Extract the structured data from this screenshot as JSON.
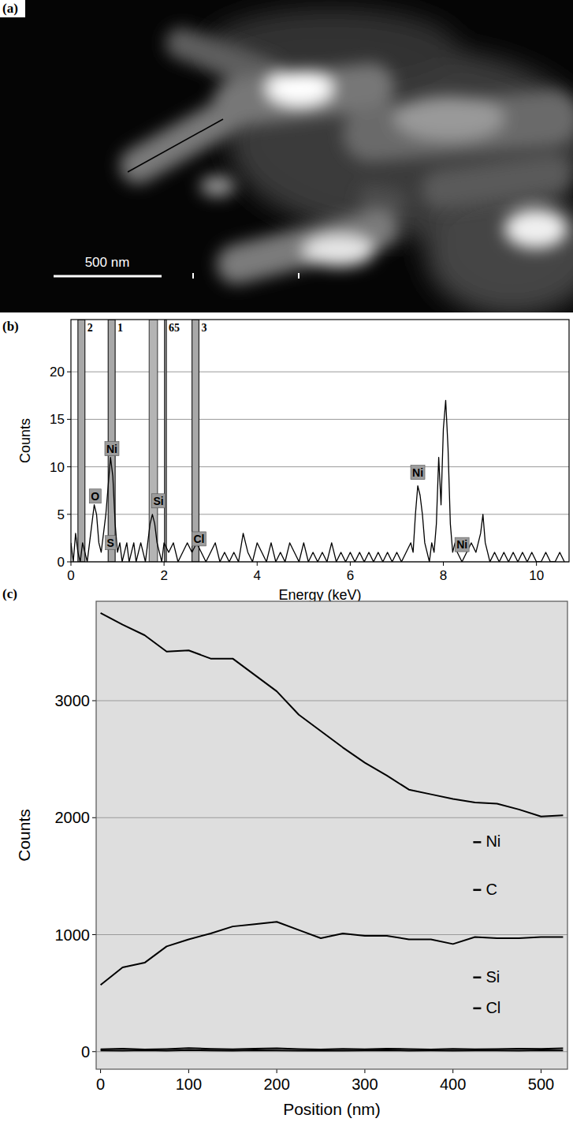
{
  "image": {
    "label": "(a)",
    "scale_bar": "500 nm"
  },
  "chart_data": [
    {
      "type": "line",
      "label": "(b)",
      "x_label": "Energy (keV)",
      "y_label": "Counts",
      "x": [
        0,
        0.05,
        0.1,
        0.15,
        0.2,
        0.25,
        0.3,
        0.35,
        0.4,
        0.45,
        0.5,
        0.55,
        0.6,
        0.65,
        0.7,
        0.75,
        0.8,
        0.85,
        0.9,
        0.95,
        1.0,
        1.05,
        1.1,
        1.15,
        1.2,
        1.25,
        1.3,
        1.35,
        1.4,
        1.45,
        1.5,
        1.55,
        1.6,
        1.65,
        1.7,
        1.75,
        1.8,
        1.85,
        1.9,
        1.95,
        2.0,
        2.1,
        2.2,
        2.3,
        2.4,
        2.5,
        2.6,
        2.7,
        2.8,
        2.9,
        3.0,
        3.1,
        3.2,
        3.3,
        3.4,
        3.5,
        3.6,
        3.7,
        3.8,
        3.9,
        4.0,
        4.1,
        4.2,
        4.3,
        4.4,
        4.5,
        4.6,
        4.7,
        4.8,
        4.9,
        5.0,
        5.1,
        5.2,
        5.3,
        5.4,
        5.5,
        5.6,
        5.7,
        5.8,
        5.9,
        6.0,
        6.1,
        6.2,
        6.3,
        6.4,
        6.5,
        6.6,
        6.7,
        6.8,
        6.9,
        7.0,
        7.1,
        7.2,
        7.3,
        7.35,
        7.4,
        7.45,
        7.5,
        7.55,
        7.6,
        7.65,
        7.7,
        7.75,
        7.8,
        7.85,
        7.9,
        7.95,
        8.0,
        8.05,
        8.1,
        8.15,
        8.2,
        8.25,
        8.3,
        8.4,
        8.5,
        8.6,
        8.7,
        8.8,
        8.85,
        8.9,
        8.95,
        9.0,
        9.1,
        9.2,
        9.3,
        9.4,
        9.5,
        9.6,
        9.7,
        9.8,
        9.9,
        10.0,
        10.1,
        10.2,
        10.3,
        10.4,
        10.5,
        10.6
      ],
      "values": [
        2,
        0,
        3,
        1,
        0,
        2,
        1,
        0,
        2,
        4,
        6,
        5,
        2,
        1,
        3,
        5,
        8,
        11,
        9,
        4,
        1,
        2,
        0,
        1,
        2,
        0,
        1,
        2,
        0,
        1,
        2,
        1,
        0,
        2,
        4,
        5,
        4,
        2,
        1,
        0,
        2,
        1,
        2,
        0,
        1,
        2,
        1,
        2,
        1,
        0,
        1,
        2,
        0,
        1,
        0,
        1,
        0,
        3,
        1,
        0,
        2,
        1,
        0,
        2,
        0,
        1,
        0,
        2,
        1,
        0,
        2,
        0,
        1,
        0,
        1,
        0,
        2,
        0,
        1,
        0,
        1,
        0,
        1,
        0,
        1,
        0,
        1,
        0,
        1,
        0,
        1,
        0,
        1,
        2,
        1,
        5,
        8,
        7,
        5,
        2,
        1,
        0,
        2,
        1,
        4,
        11,
        6,
        14,
        17,
        12,
        4,
        1,
        2,
        1,
        0,
        1,
        2,
        1,
        3,
        5,
        2,
        1,
        0,
        1,
        0,
        1,
        0,
        1,
        0,
        1,
        0,
        1,
        0,
        0,
        1,
        0,
        0,
        1,
        0
      ],
      "color": "#000000",
      "xlim": [
        0,
        10.7
      ],
      "xticks": [
        0,
        2,
        4,
        6,
        8,
        10
      ],
      "ylim": [
        0,
        25.5
      ],
      "yticks": [
        0,
        5,
        10,
        15,
        20
      ],
      "grid": true,
      "markers": [
        {
          "label": "2",
          "x": [
            0.15,
            0.3
          ]
        },
        {
          "label": "1",
          "x": [
            0.8,
            0.95
          ]
        },
        {
          "label": "65",
          "x": [
            2.01,
            2.05
          ]
        },
        {
          "label": "3",
          "x": [
            2.6,
            2.75
          ]
        }
      ],
      "element_bands": [
        [
          1.68,
          1.86
        ]
      ],
      "annotations": [
        {
          "text": "O",
          "x": 0.52,
          "y": 6.5
        },
        {
          "text": "Ni",
          "x": 0.88,
          "y": 11.5
        },
        {
          "text": "S",
          "x": 0.85,
          "y": 1.6
        },
        {
          "text": "Si",
          "x": 1.88,
          "y": 6
        },
        {
          "text": "Cl",
          "x": 2.75,
          "y": 2
        },
        {
          "text": "Ni",
          "x": 7.45,
          "y": 9
        },
        {
          "text": "Ni",
          "x": 8.4,
          "y": 1.4
        }
      ]
    },
    {
      "type": "line",
      "label": "(c)",
      "x_label": "Position (nm)",
      "y_label": "Counts",
      "x": [
        0,
        25,
        50,
        75,
        100,
        125,
        150,
        175,
        200,
        225,
        250,
        275,
        300,
        325,
        350,
        375,
        400,
        425,
        450,
        475,
        500,
        525
      ],
      "series": [
        {
          "name": "Ni",
          "color": "#000000",
          "values": [
            3750,
            3650,
            3560,
            3420,
            3430,
            3360,
            3360,
            3220,
            3080,
            2880,
            2740,
            2600,
            2470,
            2360,
            2240,
            2200,
            2160,
            2130,
            2120,
            2070,
            2010,
            2020
          ]
        },
        {
          "name": "C",
          "color": "#000000",
          "values": [
            570,
            720,
            760,
            900,
            960,
            1010,
            1070,
            1090,
            1110,
            1040,
            970,
            1010,
            990,
            990,
            960,
            960,
            920,
            980,
            970,
            970,
            980,
            980
          ]
        },
        {
          "name": "Si",
          "color": "#000000",
          "values": [
            20,
            25,
            18,
            22,
            30,
            24,
            20,
            26,
            28,
            22,
            18,
            24,
            20,
            26,
            22,
            18,
            24,
            20,
            22,
            26,
            24,
            28
          ]
        },
        {
          "name": "Cl",
          "color": "#000000",
          "values": [
            10,
            8,
            12,
            9,
            14,
            10,
            8,
            12,
            10,
            9,
            11,
            8,
            10,
            12,
            9,
            10,
            8,
            11,
            10,
            9,
            12,
            10
          ]
        }
      ],
      "xlim": [
        -5,
        530
      ],
      "xticks": [
        0,
        100,
        200,
        300,
        400,
        500
      ],
      "ylim": [
        -150,
        3850
      ],
      "yticks": [
        0,
        1000,
        2000,
        3000
      ],
      "grid": true,
      "legend": "right"
    }
  ]
}
